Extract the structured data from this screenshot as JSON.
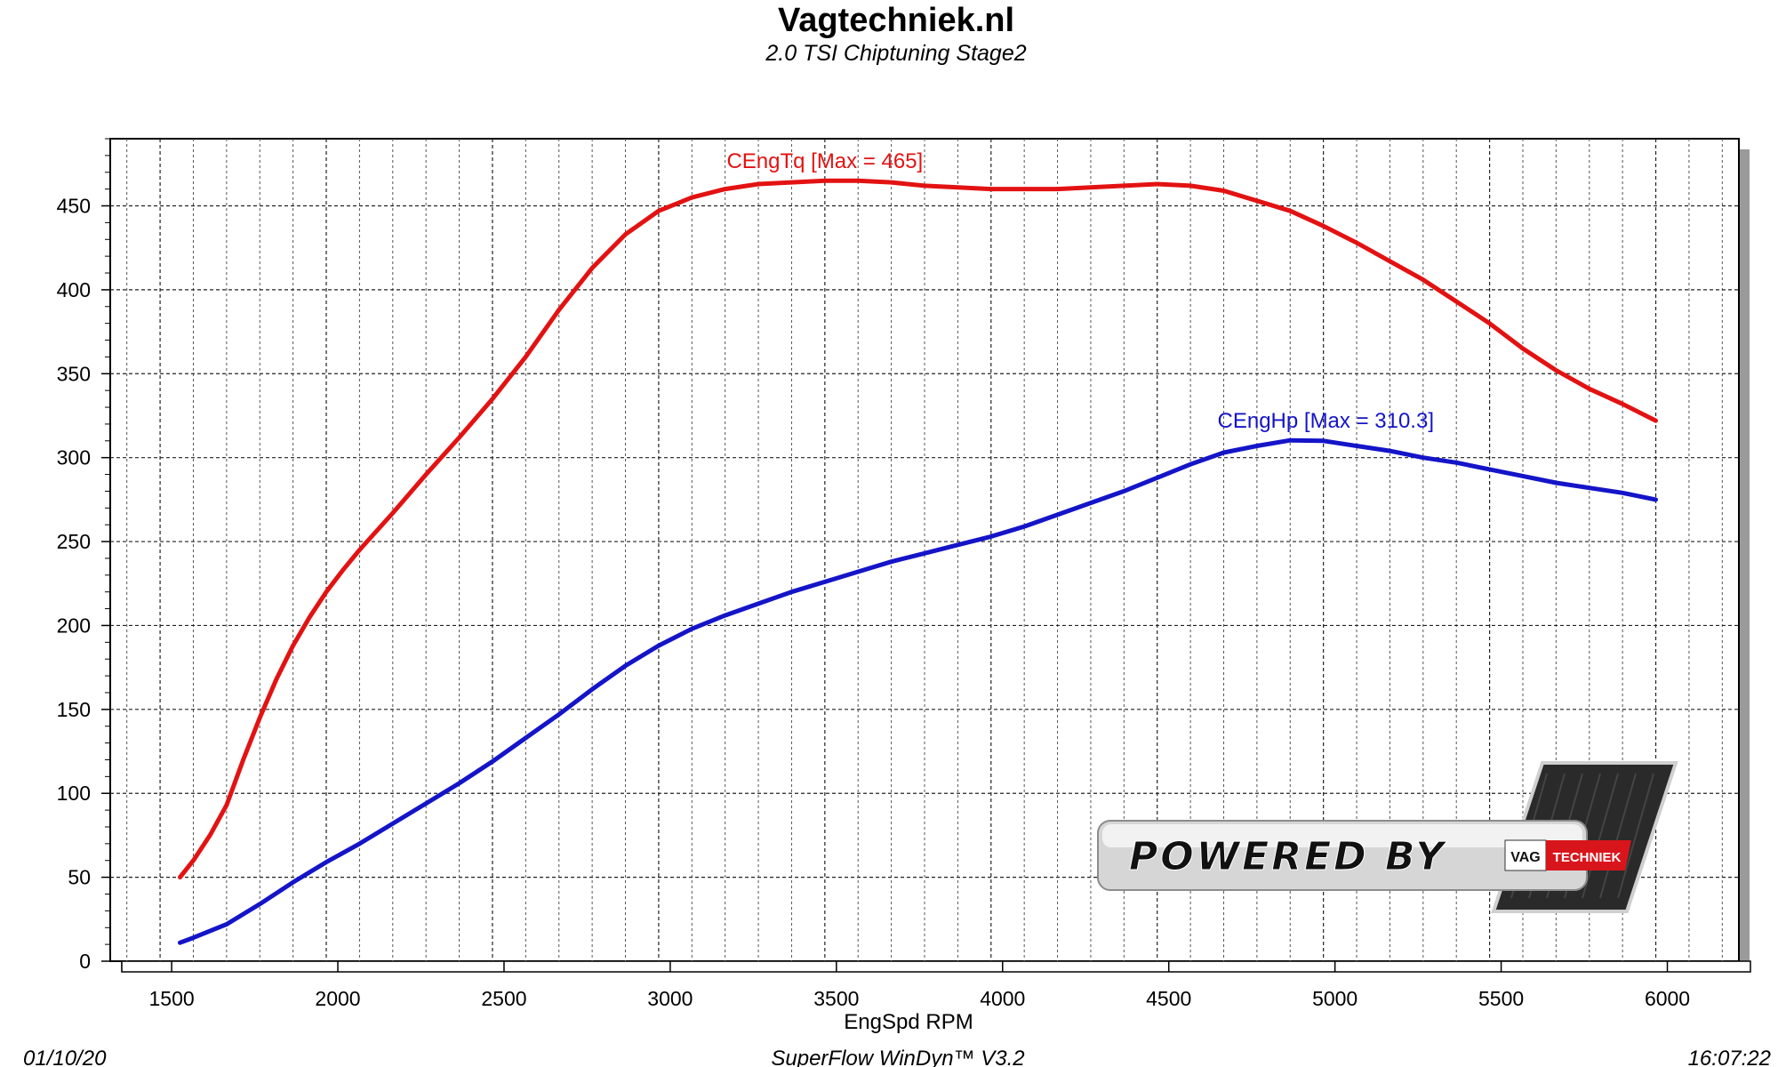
{
  "header": {
    "title": "Vagtechniek.nl",
    "subtitle": "2.0 TSI Chiptuning Stage2"
  },
  "footer": {
    "date": "01/10/20",
    "software": "SuperFlow WinDyn™  V3.2",
    "time": "16:07:22"
  },
  "logo": {
    "text": "POWERED BY",
    "badge_left": "VAG",
    "badge_right": "TECHNIEK",
    "colors": {
      "badge_red": "#d9151c",
      "panel": "#d8d8d8",
      "carbon": "#2a2a2a"
    }
  },
  "chart_data": {
    "type": "line",
    "xlabel": "EngSpd RPM",
    "ylabel": "",
    "xlim": [
      1350,
      6250
    ],
    "ylim": [
      0,
      490
    ],
    "xticks": [
      1500,
      2000,
      2500,
      3000,
      3500,
      4000,
      4500,
      5000,
      5500,
      6000
    ],
    "yticks": [
      0,
      50,
      100,
      150,
      200,
      250,
      300,
      350,
      400,
      450
    ],
    "grid": true,
    "series": [
      {
        "name": "CEngTq",
        "label": "CEngTq [Max = 465]",
        "color": "#e31212",
        "x": [
          1560,
          1600,
          1650,
          1700,
          1750,
          1800,
          1850,
          1900,
          1950,
          2000,
          2050,
          2100,
          2200,
          2300,
          2400,
          2500,
          2600,
          2700,
          2800,
          2900,
          3000,
          3100,
          3200,
          3300,
          3400,
          3500,
          3600,
          3700,
          3800,
          3900,
          4000,
          4100,
          4200,
          4300,
          4400,
          4500,
          4600,
          4700,
          4750,
          4800,
          4900,
          5000,
          5100,
          5200,
          5300,
          5400,
          5500,
          5600,
          5700,
          5800,
          5900,
          6000
        ],
        "y": [
          50,
          60,
          75,
          93,
          120,
          145,
          168,
          188,
          205,
          220,
          233,
          245,
          267,
          290,
          312,
          335,
          360,
          388,
          413,
          433,
          447,
          455,
          460,
          463,
          464,
          465,
          465,
          464,
          462,
          461,
          460,
          460,
          460,
          461,
          462,
          463,
          462,
          459,
          456,
          453,
          447,
          438,
          428,
          417,
          406,
          393,
          380,
          365,
          352,
          341,
          332,
          322
        ]
      },
      {
        "name": "CEngHp",
        "label": "CEngHp [Max = 310.3]",
        "color": "#1414c8",
        "x": [
          1560,
          1600,
          1700,
          1800,
          1900,
          2000,
          2100,
          2200,
          2300,
          2400,
          2500,
          2600,
          2700,
          2800,
          2900,
          3000,
          3100,
          3200,
          3300,
          3400,
          3500,
          3600,
          3700,
          3800,
          3900,
          4000,
          4100,
          4200,
          4300,
          4400,
          4500,
          4600,
          4700,
          4800,
          4900,
          5000,
          5100,
          5200,
          5300,
          5400,
          5500,
          5600,
          5700,
          5800,
          5900,
          6000
        ],
        "y": [
          11,
          14,
          22,
          34,
          47,
          59,
          70,
          82,
          94,
          106,
          119,
          133,
          147,
          162,
          176,
          188,
          198,
          206,
          213,
          220,
          226,
          232,
          238,
          243,
          248,
          253,
          259,
          266,
          273,
          280,
          288,
          296,
          303,
          307,
          310.3,
          310,
          307,
          304,
          300,
          297,
          293,
          289,
          285,
          282,
          279,
          275
        ]
      }
    ]
  }
}
